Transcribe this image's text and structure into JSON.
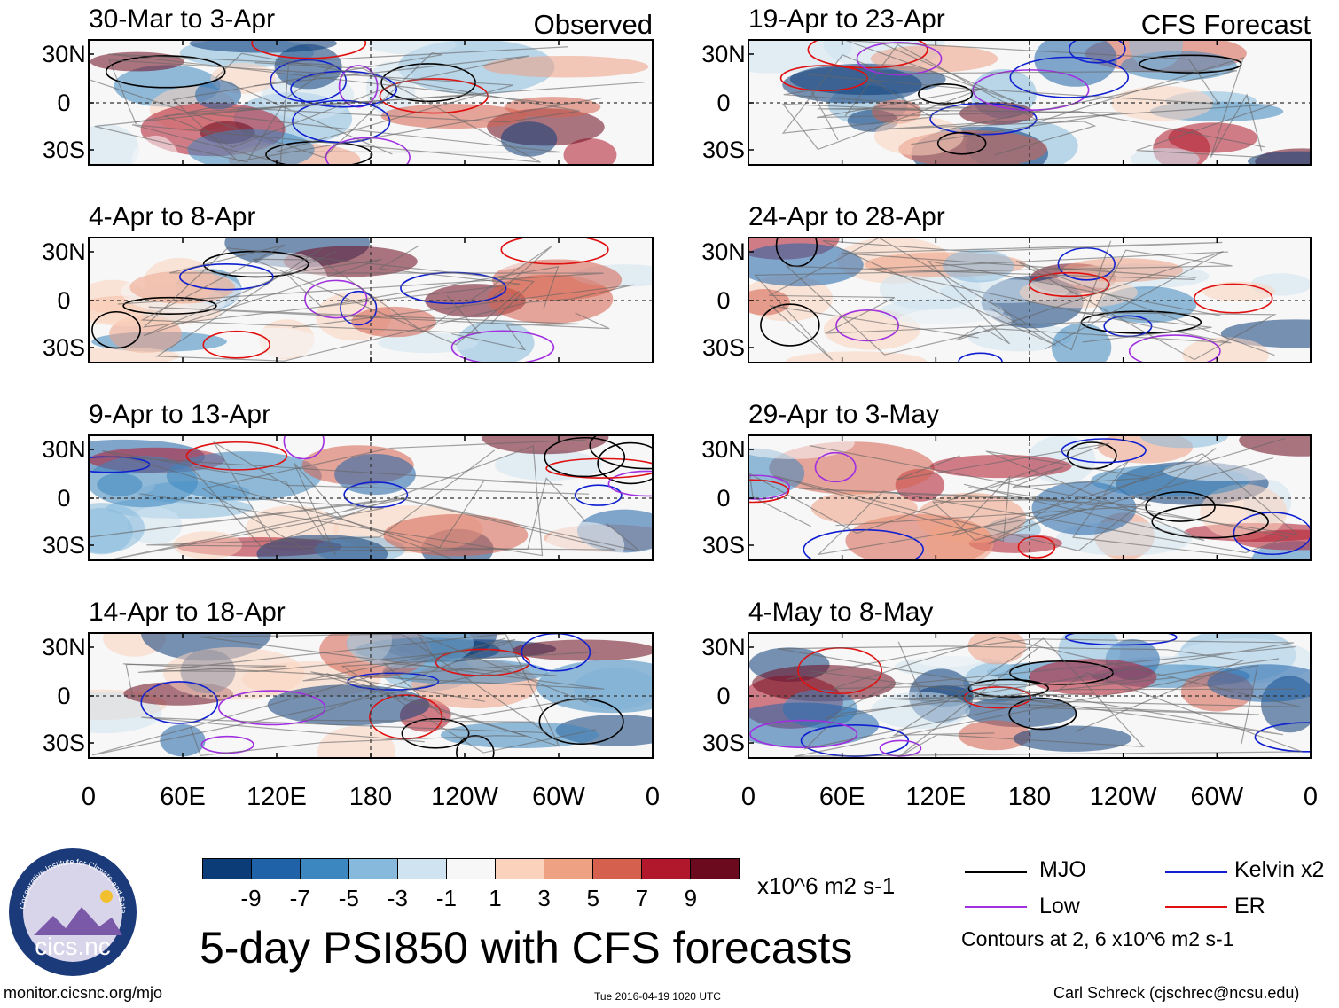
{
  "chart_data": {
    "type": "heatmap",
    "title": "5-day PSI850 with CFS forecasts",
    "observed_label": "Observed",
    "forecast_label": "CFS Forecast",
    "units": "x10^6 m2 s-1",
    "lat_ticks": [
      "30N",
      "0",
      "30S"
    ],
    "lon_ticks": [
      "0",
      "60E",
      "120E",
      "180",
      "120W",
      "60W",
      "0"
    ],
    "panels": [
      {
        "title": "30-Mar to 3-Apr",
        "source": "Observed"
      },
      {
        "title": "4-Apr to 8-Apr",
        "source": "Observed"
      },
      {
        "title": "9-Apr to 13-Apr",
        "source": "Observed"
      },
      {
        "title": "14-Apr to 18-Apr",
        "source": "Observed"
      },
      {
        "title": "19-Apr to 23-Apr",
        "source": "CFS Forecast"
      },
      {
        "title": "24-Apr to 28-Apr",
        "source": "CFS Forecast"
      },
      {
        "title": "29-Apr to 3-May",
        "source": "CFS Forecast"
      },
      {
        "title": "4-May to 8-May",
        "source": "CFS Forecast"
      }
    ],
    "colorbar": {
      "levels": [
        "-9",
        "-7",
        "-5",
        "-3",
        "-1",
        "1",
        "3",
        "5",
        "7",
        "9"
      ],
      "colors": [
        "#0b3c78",
        "#1f62a8",
        "#3d87c0",
        "#86b9dc",
        "#cfe3f0",
        "#f7f7f7",
        "#fbd3bd",
        "#eea183",
        "#d5604d",
        "#b1182b",
        "#6b0a1e"
      ]
    },
    "legend": [
      {
        "label": "MJO",
        "color": "#000000"
      },
      {
        "label": "Kelvin x2",
        "color": "#1020d0"
      },
      {
        "label": "Low",
        "color": "#a030e0"
      },
      {
        "label": "ER",
        "color": "#e01010"
      }
    ],
    "contours_note": "Contours at 2, 6 x10^6 m2 s-1"
  },
  "footer": {
    "left": "monitor.cicsnc.org/mjo",
    "center": "Tue 2016-04-19 1020 UTC",
    "right": "Carl Schreck (cjschrec@ncsu.edu)"
  },
  "logo": {
    "arc_text": "Cooperative Institute for Climate and Satellites",
    "name": "cics.nc"
  }
}
